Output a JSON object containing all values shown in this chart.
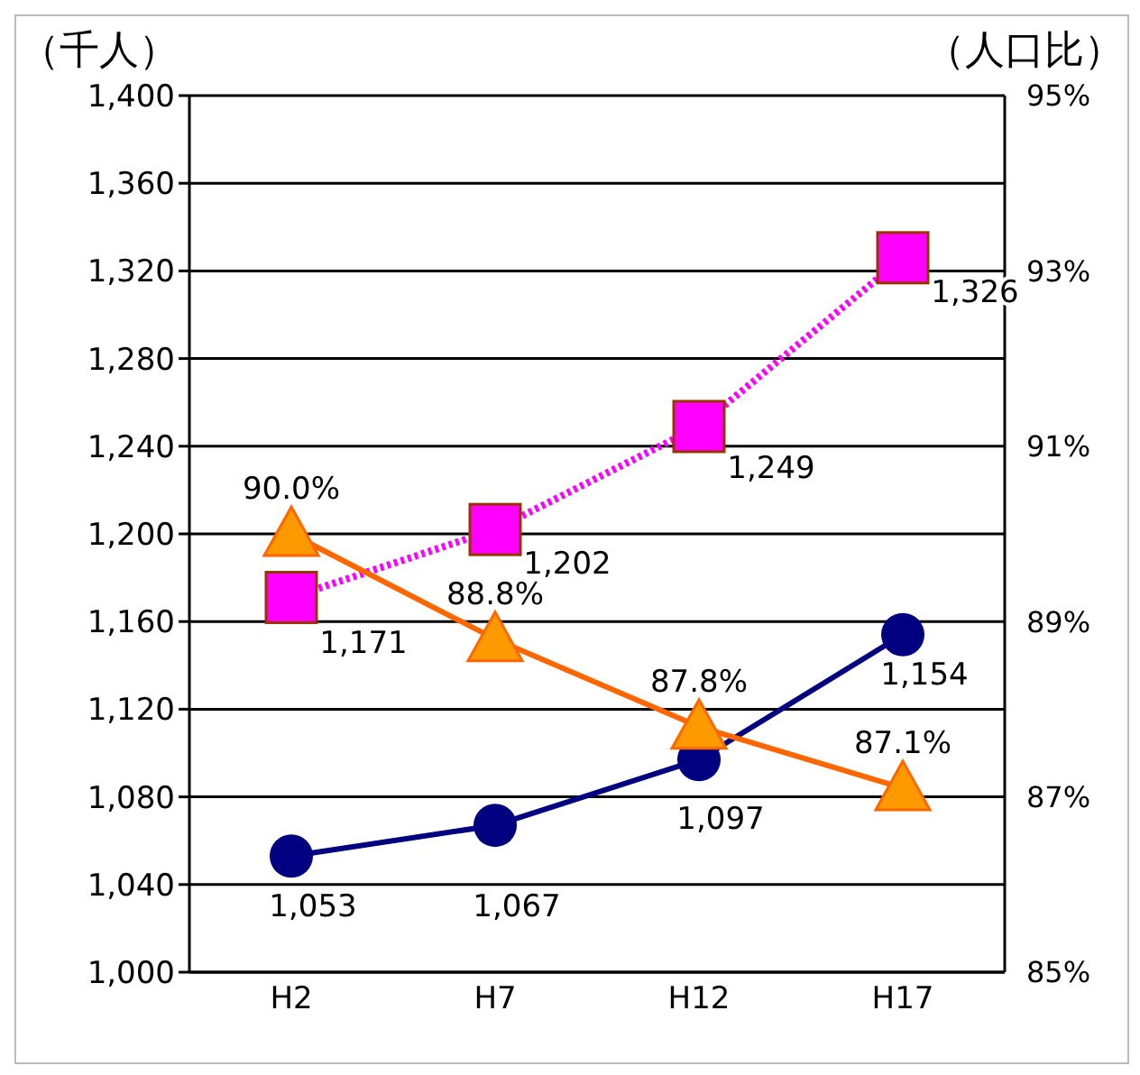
{
  "chart_data": {
    "type": "line",
    "ylabel": "（千人）",
    "y2label": "（人口比）",
    "categories": [
      "H2",
      "H7",
      "H12",
      "H17"
    ],
    "ylim": [
      1000,
      1400
    ],
    "yticks": [
      {
        "value": 1000,
        "label": "1,000"
      },
      {
        "value": 1040,
        "label": "1,040"
      },
      {
        "value": 1080,
        "label": "1,080"
      },
      {
        "value": 1120,
        "label": "1,120"
      },
      {
        "value": 1160,
        "label": "1,160"
      },
      {
        "value": 1200,
        "label": "1,200"
      },
      {
        "value": 1240,
        "label": "1,240"
      },
      {
        "value": 1280,
        "label": "1,280"
      },
      {
        "value": 1320,
        "label": "1,320"
      },
      {
        "value": 1360,
        "label": "1,360"
      },
      {
        "value": 1400,
        "label": "1,400"
      }
    ],
    "y2lim": [
      85,
      95
    ],
    "y2ticks": [
      {
        "value": 85,
        "label": "85%"
      },
      {
        "value": 87,
        "label": "87%"
      },
      {
        "value": 89,
        "label": "89%"
      },
      {
        "value": 91,
        "label": "91%"
      },
      {
        "value": 93,
        "label": "93%"
      },
      {
        "value": 95,
        "label": "95%"
      }
    ],
    "grid": "y",
    "legend": false,
    "series": [
      {
        "color": "#ff00ff",
        "marker": "square",
        "line_style": "dotted",
        "values": [
          1171,
          1202,
          1249,
          1326
        ],
        "value_labels": [
          "1,171",
          "1,202",
          "1,249",
          "1,326"
        ]
      },
      {
        "color": "#000080",
        "marker": "circle",
        "line_style": "solid",
        "values": [
          1053,
          1067,
          1097,
          1154
        ],
        "value_labels": [
          "1,053",
          "1,067",
          "1,097",
          "1,154"
        ]
      },
      {
        "color": "#ff6600",
        "marker": "triangle",
        "line_style": "solid",
        "axis": "y2",
        "values": [
          90.0,
          88.8,
          87.8,
          87.1
        ],
        "value_labels": [
          "90.0%",
          "88.8%",
          "87.8%",
          "87.1%"
        ]
      }
    ]
  }
}
